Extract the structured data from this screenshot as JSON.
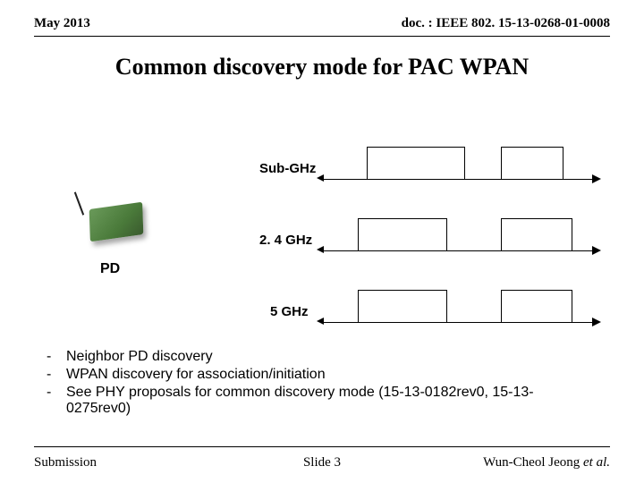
{
  "header": {
    "date": "May 2013",
    "doc": "doc. : IEEE 802. 15-13-0268-01-0008"
  },
  "title": "Common discovery mode for PAC WPAN",
  "diagram": {
    "pd_label": "PD",
    "rows": [
      {
        "label": "Sub-GHz"
      },
      {
        "label": "2. 4 GHz"
      },
      {
        "label": "5 GHz"
      }
    ]
  },
  "bullets": [
    "Neighbor PD discovery",
    "WPAN discovery for association/initiation",
    "See PHY proposals for common discovery mode (15-13-0182rev0, 15-13-0275rev0)"
  ],
  "footer": {
    "left": "Submission",
    "center": "Slide 3",
    "right_name": "Wun-Cheol Jeong ",
    "right_suffix": "et al."
  }
}
